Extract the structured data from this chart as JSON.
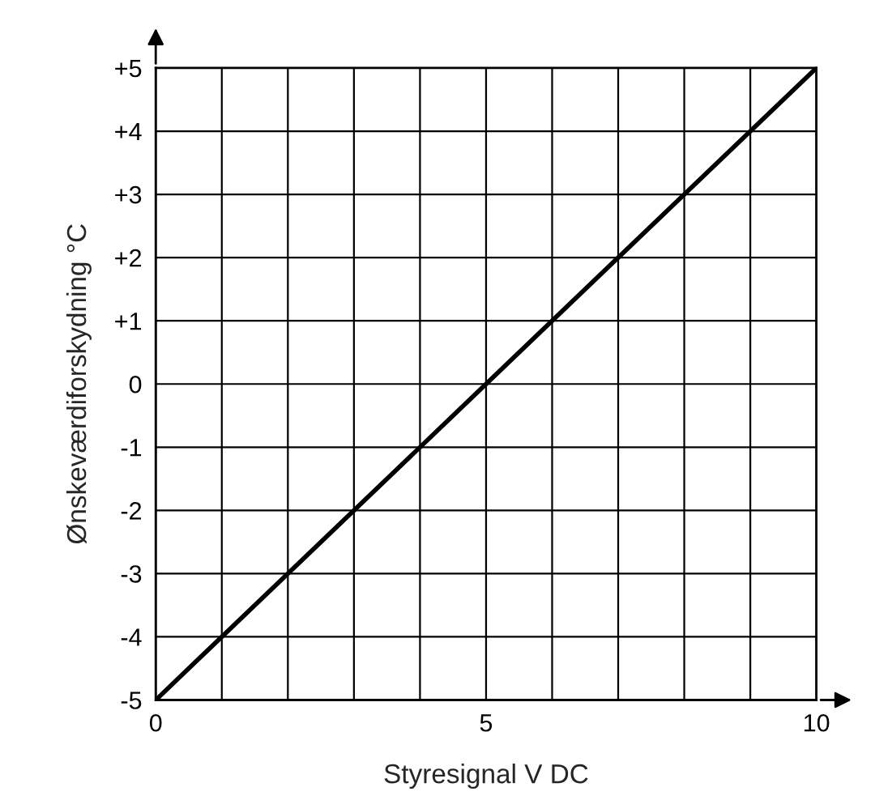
{
  "chart_data": {
    "type": "line",
    "xlabel": "Styresignal V DC",
    "ylabel": "Ønskeværdiforskydning °C",
    "x": [
      0,
      10
    ],
    "series": [
      {
        "color": "#000000",
        "values": [
          -5,
          5
        ]
      }
    ],
    "xlim": [
      0,
      10
    ],
    "xticks": [
      0,
      {
        "value": 1,
        "label": null
      },
      {
        "value": 2,
        "label": null
      },
      {
        "value": 3,
        "label": null
      },
      {
        "value": 4,
        "label": null
      },
      5,
      {
        "value": 6,
        "label": null
      },
      {
        "value": 7,
        "label": null
      },
      {
        "value": 8,
        "label": null
      },
      {
        "value": 9,
        "label": null
      },
      10
    ],
    "ylim": [
      -5,
      5
    ],
    "yticks": [
      -5,
      -4,
      -3,
      -2,
      -1,
      0,
      {
        "value": 1,
        "label": "+1"
      },
      {
        "value": 2,
        "label": "+2"
      },
      {
        "value": 3,
        "label": "+3"
      },
      {
        "value": 4,
        "label": "+4"
      },
      {
        "value": 5,
        "label": "+5"
      }
    ],
    "grid": true,
    "marker": "none",
    "line_style": "solid"
  }
}
